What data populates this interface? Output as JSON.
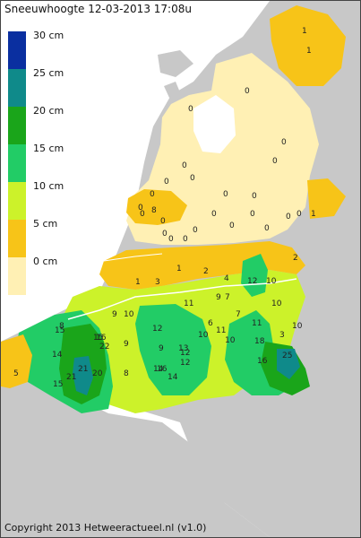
{
  "title": "Sneeuwhoogte 12-03-2013 17:08u",
  "copyright": "Copyright 2013 Hetweeractueel.nl (v1.0)",
  "legend": [
    {
      "label": "30 cm",
      "color": "#0a2fa0"
    },
    {
      "label": "25 cm",
      "color": "#0f8a8a"
    },
    {
      "label": "20 cm",
      "color": "#1aa51a"
    },
    {
      "label": "15 cm",
      "color": "#22cc66"
    },
    {
      "label": "10 cm",
      "color": "#ccf22a"
    },
    {
      "label": "5 cm",
      "color": "#f7c418"
    },
    {
      "label": "0 cm",
      "color": "#fff0b4"
    }
  ],
  "colors": {
    "land_gray": "#c8c8c8",
    "water": "#ffffff",
    "border": "#ffffff"
  },
  "measurements": [
    "1",
    "1",
    "0",
    "0",
    "0",
    "0",
    "0",
    "0",
    "0",
    "0",
    "0",
    "0",
    "0",
    "0",
    "0",
    "0",
    "0",
    "0",
    "8",
    "0",
    "0",
    "0",
    "0",
    "0",
    "0",
    "0",
    "1",
    "1",
    "3",
    "1",
    "2",
    "4",
    "2",
    "12",
    "10",
    "9",
    "7",
    "11",
    "7",
    "10",
    "8",
    "9",
    "10",
    "12",
    "15",
    "16",
    "22",
    "9",
    "6",
    "11",
    "18",
    "11",
    "10",
    "3",
    "14",
    "21",
    "20",
    "9",
    "13",
    "10",
    "14",
    "8",
    "16",
    "12",
    "25",
    "5",
    "15",
    "21",
    "14",
    "12",
    "10",
    "15",
    "16"
  ]
}
